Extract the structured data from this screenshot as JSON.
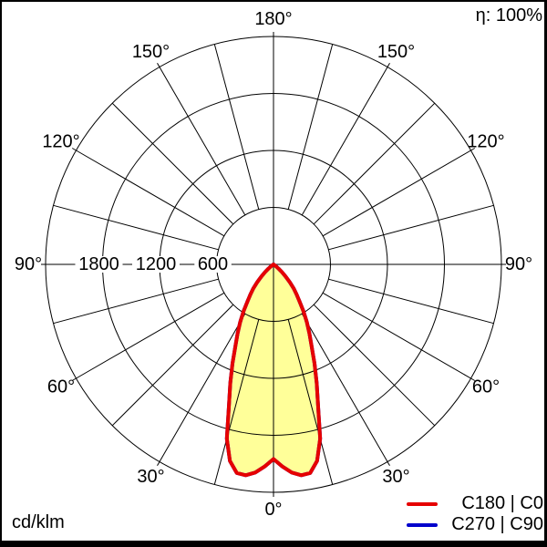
{
  "header": {
    "efficiency_label": "η: 100%"
  },
  "footer": {
    "unit_label": "cd/klm"
  },
  "legend": {
    "items": [
      {
        "label": "C180 | C0",
        "color": "#e60000"
      },
      {
        "label": "C270 | C90",
        "color": "#0000cc"
      }
    ]
  },
  "chart_data": {
    "type": "polar",
    "title": "Luminous intensity distribution curve",
    "units": "cd/klm",
    "efficiency_label": "η: 100%",
    "rmax": 2400,
    "ring_step": 600,
    "ring_values": [
      600,
      1200,
      1800,
      2400
    ],
    "ring_axis_labels": [
      "600",
      "1200",
      "1800"
    ],
    "angle_step_deg": 15,
    "angle_label_values_deg": [
      0,
      30,
      60,
      90,
      120,
      150,
      180
    ],
    "degree_suffix": "°",
    "grid_color": "#000000",
    "curve_stroke_width": 4,
    "series": [
      {
        "name": "C270 | C90",
        "color": "#0000cc",
        "fill": "#ffff99",
        "gamma_deg": [
          0,
          2.5,
          5,
          7.5,
          10,
          12.5,
          15,
          17.5,
          20,
          22.5,
          25,
          27.5,
          30,
          32.5,
          35,
          37.5,
          40,
          42.5,
          45,
          47.5,
          50,
          52.5,
          55,
          60,
          65,
          70,
          75,
          80,
          85,
          90
        ],
        "values": [
          2050,
          2130,
          2200,
          2240,
          2230,
          2120,
          1900,
          1560,
          1330,
          1130,
          950,
          820,
          700,
          590,
          480,
          400,
          330,
          255,
          180,
          120,
          70,
          30,
          0,
          0,
          0,
          0,
          0,
          0,
          0,
          0
        ]
      },
      {
        "name": "C180 | C0",
        "color": "#e60000",
        "fill": "#ffff99",
        "gamma_deg": [
          0,
          2.5,
          5,
          7.5,
          10,
          12.5,
          15,
          17.5,
          20,
          22.5,
          25,
          27.5,
          30,
          32.5,
          35,
          37.5,
          40,
          42.5,
          45,
          47.5,
          50,
          52.5,
          55,
          60,
          65,
          70,
          75,
          80,
          85,
          90
        ],
        "values": [
          2050,
          2130,
          2200,
          2240,
          2230,
          2120,
          1900,
          1560,
          1330,
          1130,
          950,
          820,
          700,
          590,
          480,
          400,
          330,
          255,
          180,
          120,
          70,
          30,
          0,
          0,
          0,
          0,
          0,
          0,
          0,
          0
        ]
      }
    ],
    "layout": {
      "zero_angle_position": "bottom",
      "legend_position": "bottom-right",
      "grid": true
    }
  }
}
